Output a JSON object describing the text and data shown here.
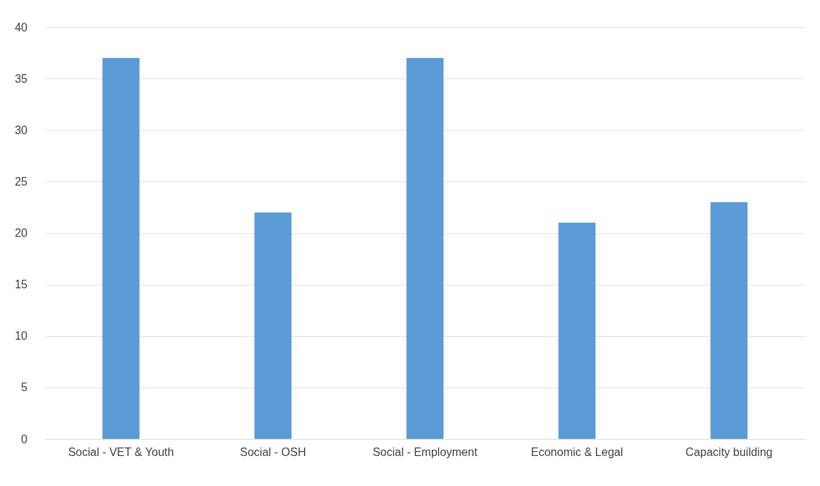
{
  "chart_data": {
    "type": "bar",
    "categories": [
      "Social - VET & Youth",
      "Social - OSH",
      "Social - Employment",
      "Economic & Legal",
      "Capacity building"
    ],
    "values": [
      37,
      22,
      37,
      21,
      23
    ],
    "color": "#5b9bd5",
    "ylim": [
      0,
      40
    ],
    "yticks": [
      0,
      5,
      10,
      15,
      20,
      25,
      30,
      35,
      40
    ],
    "grid": "y"
  }
}
